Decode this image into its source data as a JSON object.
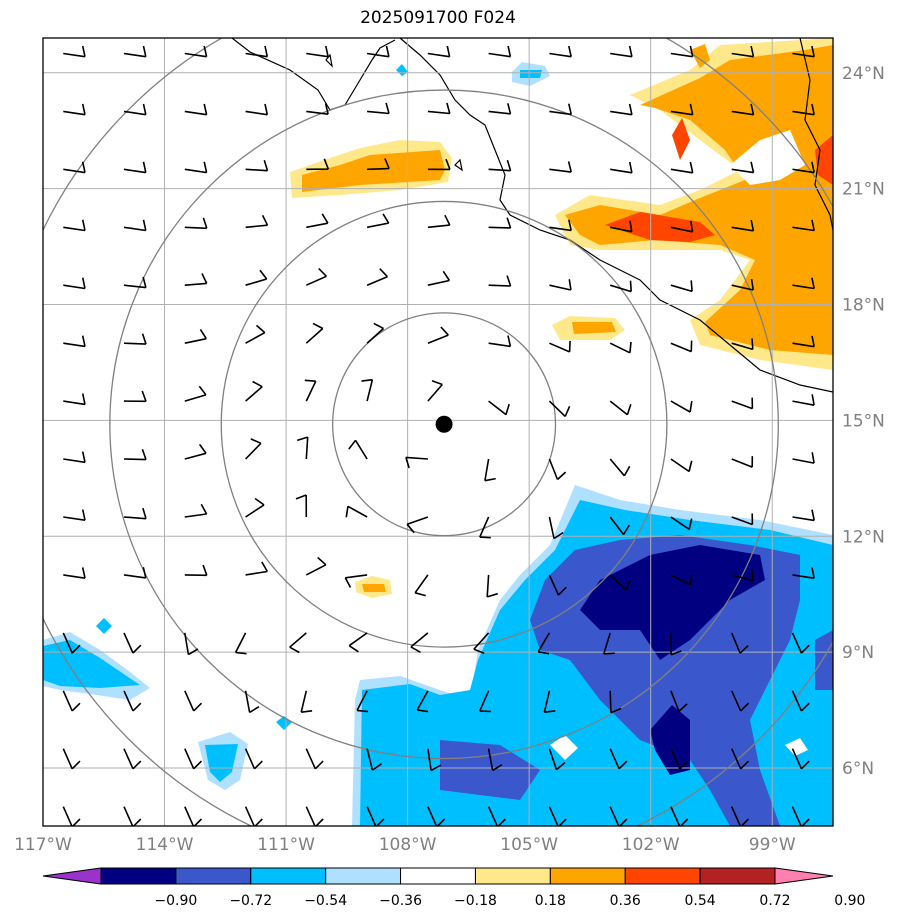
{
  "title": "2025091700 F024",
  "map": {
    "lon_range": [
      -117,
      -97.5
    ],
    "lat_range": [
      4.5,
      24.9
    ],
    "lon_ticks": [
      {
        "value": -117,
        "label": "117°W"
      },
      {
        "value": -114,
        "label": "114°W"
      },
      {
        "value": -111,
        "label": "111°W"
      },
      {
        "value": -108,
        "label": "108°W"
      },
      {
        "value": -105,
        "label": "105°W"
      },
      {
        "value": -102,
        "label": "102°W"
      },
      {
        "value": -99,
        "label": "99°W"
      }
    ],
    "lat_ticks": [
      {
        "value": 24,
        "label": "24°N"
      },
      {
        "value": 21,
        "label": "21°N"
      },
      {
        "value": 18,
        "label": "18°N"
      },
      {
        "value": 15,
        "label": "15°N"
      },
      {
        "value": 12,
        "label": "12°N"
      },
      {
        "value": 9,
        "label": "9°N"
      },
      {
        "value": 6,
        "label": "6°N"
      }
    ],
    "storm_center": {
      "lon": -107.1,
      "lat": 14.9
    },
    "range_rings_deg": [
      2.75,
      5.5,
      8.25,
      11.0
    ],
    "gridline_color": "#b0b0b0",
    "ring_color": "#808080"
  },
  "colorbar": {
    "ticks": [
      "−0.90",
      "−0.72",
      "−0.54",
      "−0.36",
      "−0.18",
      "0.18",
      "0.36",
      "0.54",
      "0.72",
      "0.90"
    ],
    "colors": [
      "#9933cc",
      "#000080",
      "#3a58cc",
      "#00bfff",
      "#b0e0ff",
      "#ffffff",
      "#ffe88a",
      "#ffa500",
      "#ff4500",
      "#b22222",
      "#ff80b0"
    ]
  }
}
